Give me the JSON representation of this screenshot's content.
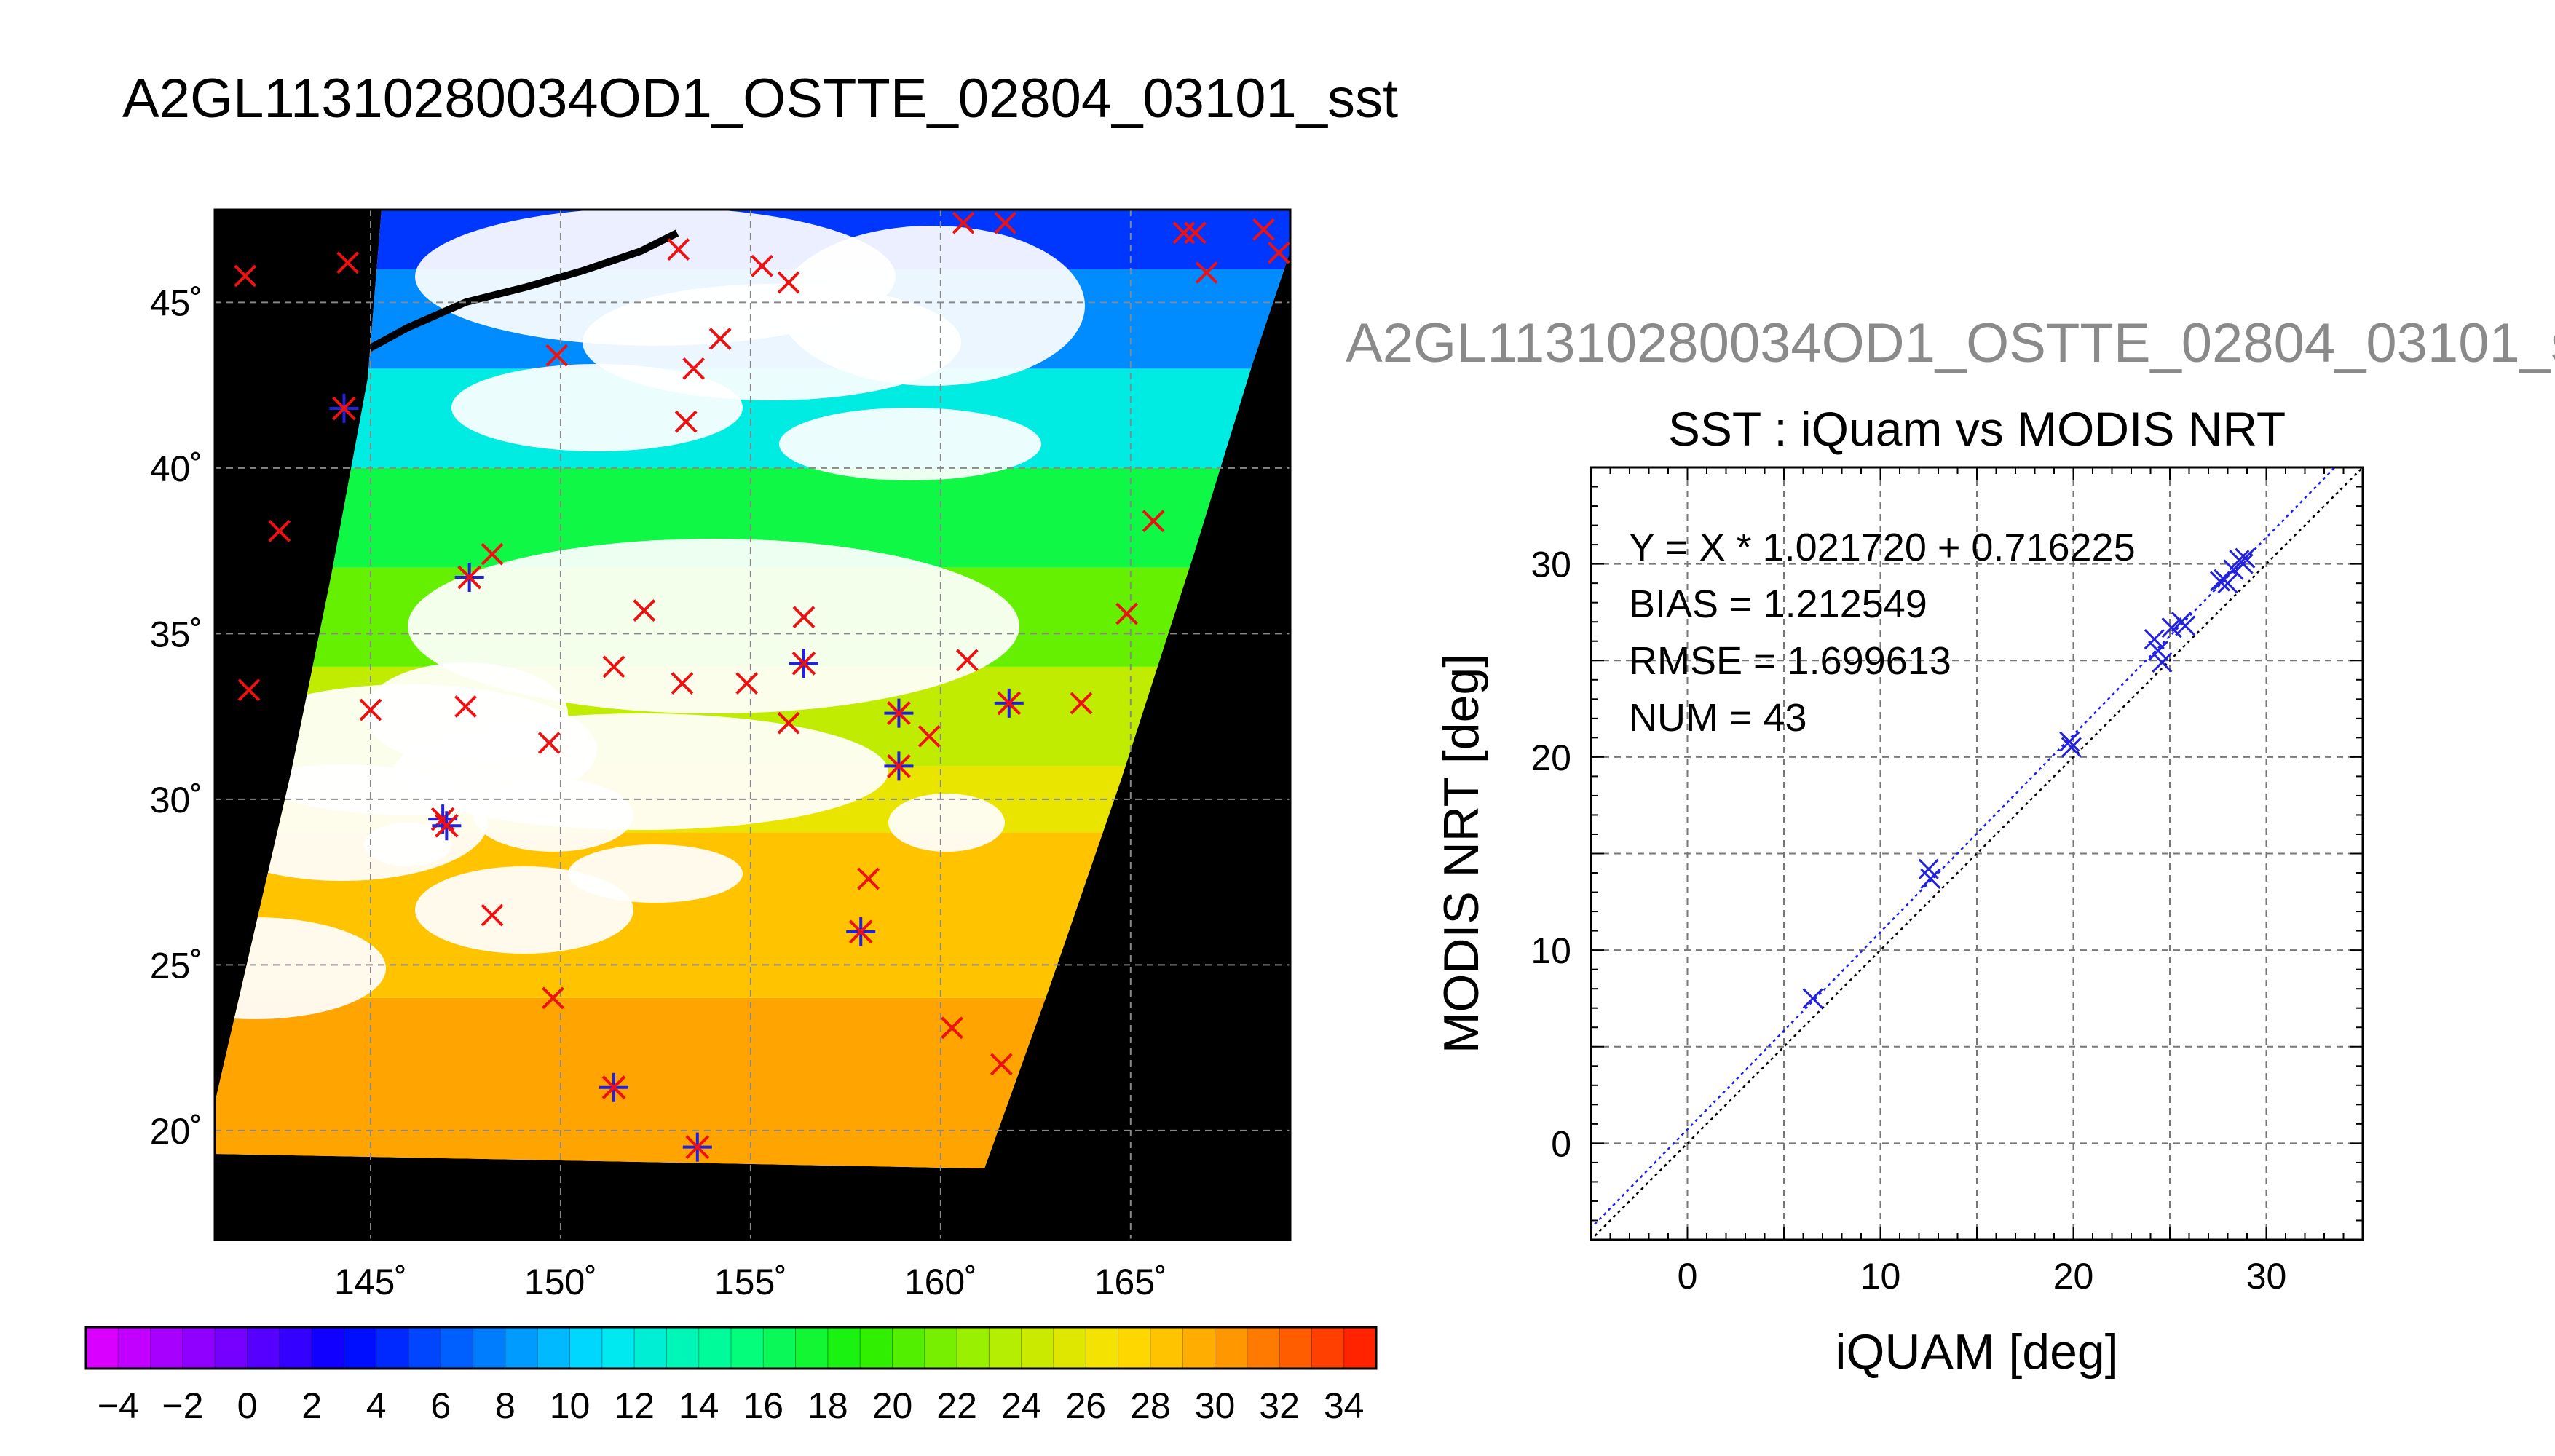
{
  "header": {
    "title": "A2GL11310280034OD1_OSTTE_02804_03101_sst",
    "scatter_gray_title": "A2GL11310280034OD1_OSTTE_02804_03101_s"
  },
  "colors": {
    "match_marker": "#2222dd",
    "reject_marker": "#ee1111",
    "fit_line": "#1a1aff",
    "identity_line": "#000000",
    "land": "#000000",
    "cloud": "#ffffff"
  },
  "chart_data": [
    {
      "type": "heatmap",
      "title": "A2GL11310280034OD1_OSTTE_02804_03101_sst",
      "xlabel": "",
      "ylabel": "",
      "xlim": [
        140.9,
        169.2
      ],
      "ylim": [
        16.7,
        47.8
      ],
      "x_ticks": [
        145,
        150,
        155,
        160,
        165
      ],
      "x_tick_labels": [
        "145˚",
        "150˚",
        "155˚",
        "160˚",
        "165˚"
      ],
      "y_ticks": [
        20,
        25,
        30,
        35,
        40,
        45
      ],
      "y_tick_labels": [
        "20˚",
        "25˚",
        "30˚",
        "35˚",
        "40˚",
        "45˚"
      ],
      "grid": true,
      "sst_bands": [
        {
          "lat_from": 16.7,
          "lat_to": 24,
          "sst": 30
        },
        {
          "lat_from": 24,
          "lat_to": 29,
          "sst": 28.5
        },
        {
          "lat_from": 29,
          "lat_to": 31,
          "sst": 26
        },
        {
          "lat_from": 31,
          "lat_to": 34,
          "sst": 24
        },
        {
          "lat_from": 34,
          "lat_to": 37,
          "sst": 21
        },
        {
          "lat_from": 37,
          "lat_to": 40,
          "sst": 17
        },
        {
          "lat_from": 40,
          "lat_to": 43,
          "sst": 12
        },
        {
          "lat_from": 43,
          "lat_to": 46,
          "sst": 8
        },
        {
          "lat_from": 46,
          "lat_to": 47.8,
          "sst": 5
        }
      ],
      "matchups_blue": [
        {
          "lon": 144.3,
          "lat": 41.8
        },
        {
          "lon": 147.6,
          "lat": 36.7
        },
        {
          "lon": 146.9,
          "lat": 29.4
        },
        {
          "lon": 147.0,
          "lat": 29.2
        },
        {
          "lon": 156.4,
          "lat": 34.1
        },
        {
          "lon": 158.9,
          "lat": 32.6
        },
        {
          "lon": 158.9,
          "lat": 31.0
        },
        {
          "lon": 161.8,
          "lat": 32.9
        },
        {
          "lon": 157.9,
          "lat": 26.0
        },
        {
          "lon": 151.4,
          "lat": 21.3
        },
        {
          "lon": 153.6,
          "lat": 19.5
        }
      ],
      "matchups_red": [
        {
          "lon": 141.7,
          "lat": 45.8
        },
        {
          "lon": 144.4,
          "lat": 46.2
        },
        {
          "lon": 153.1,
          "lat": 46.6
        },
        {
          "lon": 155.3,
          "lat": 46.1
        },
        {
          "lon": 156.0,
          "lat": 45.6
        },
        {
          "lon": 160.6,
          "lat": 47.4
        },
        {
          "lon": 161.7,
          "lat": 47.4
        },
        {
          "lon": 166.4,
          "lat": 47.1
        },
        {
          "lon": 166.7,
          "lat": 47.1
        },
        {
          "lon": 168.5,
          "lat": 47.2
        },
        {
          "lon": 168.9,
          "lat": 46.5
        },
        {
          "lon": 167.0,
          "lat": 45.9
        },
        {
          "lon": 149.9,
          "lat": 43.4
        },
        {
          "lon": 153.5,
          "lat": 43.0
        },
        {
          "lon": 154.2,
          "lat": 43.9
        },
        {
          "lon": 153.3,
          "lat": 41.4
        },
        {
          "lon": 142.6,
          "lat": 38.1
        },
        {
          "lon": 148.2,
          "lat": 37.4
        },
        {
          "lon": 165.6,
          "lat": 38.4
        },
        {
          "lon": 152.2,
          "lat": 35.7
        },
        {
          "lon": 156.4,
          "lat": 35.5
        },
        {
          "lon": 164.9,
          "lat": 35.6
        },
        {
          "lon": 141.8,
          "lat": 33.3
        },
        {
          "lon": 145.0,
          "lat": 32.7
        },
        {
          "lon": 147.5,
          "lat": 32.8
        },
        {
          "lon": 149.7,
          "lat": 31.7
        },
        {
          "lon": 151.4,
          "lat": 34.0
        },
        {
          "lon": 153.2,
          "lat": 33.5
        },
        {
          "lon": 154.9,
          "lat": 33.5
        },
        {
          "lon": 156.0,
          "lat": 32.3
        },
        {
          "lon": 160.7,
          "lat": 34.2
        },
        {
          "lon": 159.7,
          "lat": 31.9
        },
        {
          "lon": 163.7,
          "lat": 32.9
        },
        {
          "lon": 158.1,
          "lat": 27.6
        },
        {
          "lon": 148.2,
          "lat": 26.5
        },
        {
          "lon": 149.8,
          "lat": 24.0
        },
        {
          "lon": 160.3,
          "lat": 23.1
        },
        {
          "lon": 161.6,
          "lat": 22.0
        }
      ]
    },
    {
      "type": "scatter",
      "title": "SST : iQuam vs MODIS NRT",
      "xlabel": "iQUAM [deg]",
      "ylabel": "MODIS NRT [deg]",
      "xlim": [
        -5,
        35
      ],
      "ylim": [
        -5,
        35
      ],
      "x_ticks": [
        0,
        10,
        20,
        30
      ],
      "y_ticks": [
        0,
        10,
        20,
        30
      ],
      "grid": true,
      "annotations": [
        "Y = X * 1.021720 + 0.716225",
        "BIAS = 1.212549",
        "RMSE = 1.699613",
        "NUM = 43"
      ],
      "fit": {
        "slope": 1.02172,
        "intercept": 0.716225
      },
      "series": [
        {
          "x": [
            6.5,
            12.5,
            12.6,
            19.8,
            19.9,
            24.2,
            24.4,
            24.6,
            25.1,
            25.6,
            25.8,
            27.6,
            27.8,
            28.0,
            28.3,
            28.6,
            28.8,
            28.9
          ],
          "y": [
            7.5,
            14.2,
            13.7,
            20.8,
            20.5,
            26.1,
            25.5,
            24.9,
            26.7,
            27.0,
            26.8,
            29.1,
            29.2,
            29.0,
            29.7,
            30.2,
            30.0,
            30.3
          ]
        }
      ]
    }
  ],
  "colorbar": {
    "min": -5,
    "max": 35,
    "tick_labels": [
      "−4",
      "−2",
      "0",
      "2",
      "4",
      "6",
      "8",
      "10",
      "12",
      "14",
      "16",
      "18",
      "20",
      "22",
      "24",
      "26",
      "28",
      "30",
      "32",
      "34"
    ],
    "tick_values": [
      -4,
      -2,
      0,
      2,
      4,
      6,
      8,
      10,
      12,
      14,
      16,
      18,
      20,
      22,
      24,
      26,
      28,
      30,
      32,
      34
    ]
  }
}
